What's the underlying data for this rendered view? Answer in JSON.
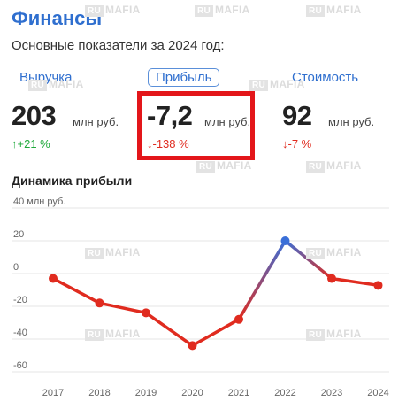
{
  "header": {
    "title": "Финансы",
    "subtitle": "Основные показатели за 2024 год:"
  },
  "metrics": [
    {
      "label": "Выручка",
      "value": "203",
      "unit": "млн руб.",
      "change": "↑+21 %",
      "trend": "up",
      "active": false
    },
    {
      "label": "Прибыль",
      "value": "-7,2",
      "unit": "млн руб.",
      "change": "↓-138 %",
      "trend": "down",
      "active": true
    },
    {
      "label": "Стоимость",
      "value": "92",
      "unit": "млн руб.",
      "change": "↓-7 %",
      "trend": "down",
      "active": false
    }
  ],
  "chart_section": {
    "title": "Динамика прибыли"
  },
  "watermark": {
    "box": "RU",
    "text": "MAFIA"
  },
  "colors": {
    "accent": "#2f6fcf",
    "negative": "#e02b1f",
    "positive": "#3a6fd8",
    "highlight": "#e3161a"
  },
  "chart_data": {
    "type": "line",
    "x": [
      "2017",
      "2018",
      "2019",
      "2020",
      "2021",
      "2022",
      "2023",
      "2024"
    ],
    "values": [
      -3,
      -18,
      -24,
      -44,
      -28,
      20,
      -3,
      -7.2
    ],
    "ylabel": "",
    "y_ticks": [
      "40 млн руб.",
      "20",
      "0",
      "-20",
      "-40",
      "-60"
    ],
    "ylim": [
      -60,
      40
    ],
    "grid": true,
    "legend": "none"
  }
}
